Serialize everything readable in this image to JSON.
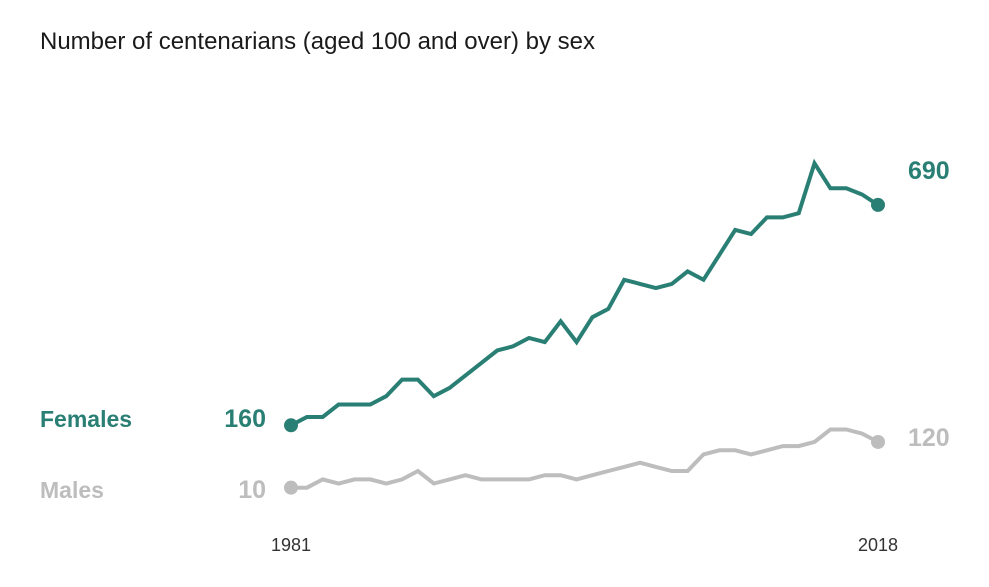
{
  "chart_data": {
    "type": "line",
    "title": "Number of centenarians (aged 100 and over) by sex",
    "xlabel": "",
    "ylabel": "",
    "x": [
      1981,
      1982,
      1983,
      1984,
      1985,
      1986,
      1987,
      1988,
      1989,
      1990,
      1991,
      1992,
      1993,
      1994,
      1995,
      1996,
      1997,
      1998,
      1999,
      2000,
      2001,
      2002,
      2003,
      2004,
      2005,
      2006,
      2007,
      2008,
      2009,
      2010,
      2011,
      2012,
      2013,
      2014,
      2015,
      2016,
      2017,
      2018
    ],
    "x_tick_labels": [
      "1981",
      "2018"
    ],
    "ylim": [
      -10,
      1000
    ],
    "series": [
      {
        "name": "Females",
        "color": "#2a7f74",
        "values": [
          160,
          180,
          180,
          210,
          210,
          210,
          230,
          270,
          270,
          230,
          250,
          280,
          310,
          340,
          350,
          370,
          360,
          410,
          360,
          420,
          440,
          510,
          500,
          490,
          500,
          530,
          510,
          570,
          630,
          620,
          660,
          660,
          670,
          790,
          730,
          730,
          715,
          690
        ],
        "start_label": "160",
        "end_label": "690"
      },
      {
        "name": "Males",
        "color": "#bdbdbd",
        "values": [
          10,
          10,
          30,
          20,
          30,
          30,
          20,
          30,
          50,
          20,
          30,
          40,
          30,
          30,
          30,
          30,
          40,
          40,
          30,
          40,
          50,
          60,
          70,
          60,
          50,
          50,
          90,
          100,
          100,
          90,
          100,
          110,
          110,
          120,
          150,
          150,
          140,
          120
        ],
        "start_label": "10",
        "end_label": "120"
      }
    ]
  }
}
